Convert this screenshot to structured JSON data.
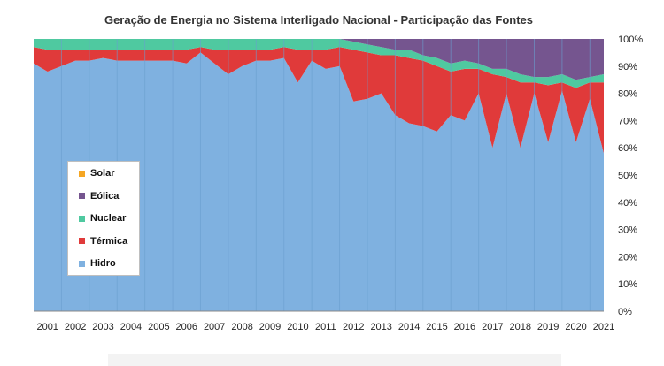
{
  "chart_data": {
    "type": "area",
    "stacked": true,
    "percent": true,
    "title": "Geração de Energia no Sistema Interligado Nacional - Participação das Fontes",
    "xlabel": "",
    "ylabel": "",
    "ylim": [
      0,
      100
    ],
    "y_ticks": [
      "0%",
      "10%",
      "20%",
      "30%",
      "40%",
      "50%",
      "60%",
      "70%",
      "80%",
      "90%",
      "100%"
    ],
    "y_axis_side": "right",
    "x_tick_labels": [
      "2001",
      "2002",
      "2003",
      "2004",
      "2005",
      "2006",
      "2007",
      "2008",
      "2009",
      "2010",
      "2011",
      "2012",
      "2013",
      "2014",
      "2015",
      "2016",
      "2017",
      "2018",
      "2019",
      "2020",
      "2021"
    ],
    "x": [
      2001.0,
      2001.5,
      2002.0,
      2002.5,
      2003.0,
      2003.5,
      2004.0,
      2004.5,
      2005.0,
      2005.5,
      2006.0,
      2006.5,
      2007.0,
      2007.5,
      2008.0,
      2008.5,
      2009.0,
      2009.5,
      2010.0,
      2010.5,
      2011.0,
      2011.5,
      2012.0,
      2012.5,
      2013.0,
      2013.5,
      2014.0,
      2014.5,
      2015.0,
      2015.5,
      2016.0,
      2016.5,
      2017.0,
      2017.5,
      2018.0,
      2018.5,
      2019.0,
      2019.5,
      2020.0,
      2020.5,
      2021.0,
      2021.5
    ],
    "grid": false,
    "legend_position": "left-middle",
    "series": [
      {
        "name": "Hidro",
        "color": "#7fb1e0",
        "values": [
          91,
          88,
          90,
          92,
          92,
          93,
          92,
          92,
          92,
          92,
          92,
          91,
          95,
          91,
          87,
          90,
          92,
          92,
          93,
          84,
          92,
          89,
          90,
          77,
          78,
          80,
          72,
          69,
          68,
          66,
          72,
          70,
          80,
          60,
          80,
          60,
          80,
          62,
          81,
          62,
          78,
          58
        ]
      },
      {
        "name": "Térmica",
        "color": "#e03a3a",
        "values": [
          6,
          8,
          6,
          4,
          4,
          3,
          4,
          4,
          4,
          4,
          4,
          5,
          2,
          5,
          9,
          6,
          4,
          4,
          4,
          12,
          4,
          7,
          7,
          19,
          17,
          14,
          22,
          24,
          24,
          24,
          16,
          19,
          9,
          27,
          6,
          24,
          4,
          21,
          3,
          20,
          6,
          26
        ]
      },
      {
        "name": "Nuclear",
        "color": "#4fc9a0",
        "values": [
          3,
          4,
          4,
          4,
          4,
          4,
          4,
          4,
          4,
          4,
          4,
          4,
          3,
          4,
          4,
          4,
          4,
          4,
          3,
          4,
          4,
          4,
          3,
          3,
          3,
          3,
          2,
          3,
          2,
          3,
          3,
          3,
          2,
          2,
          3,
          3,
          2,
          3,
          3,
          3,
          2,
          3
        ]
      },
      {
        "name": "Eólica",
        "color": "#75558f",
        "values": [
          0,
          0,
          0,
          0,
          0,
          0,
          0,
          0,
          0,
          0,
          0,
          0,
          0,
          0,
          0,
          0,
          0,
          0,
          0,
          0,
          0,
          0,
          0,
          1,
          2,
          3,
          4,
          4,
          6,
          7,
          9,
          8,
          9,
          11,
          11,
          13,
          14,
          14,
          13,
          15,
          14,
          13
        ]
      },
      {
        "name": "Solar",
        "color": "#f5a623",
        "values": [
          0,
          0,
          0,
          0,
          0,
          0,
          0,
          0,
          0,
          0,
          0,
          0,
          0,
          0,
          0,
          0,
          0,
          0,
          0,
          0,
          0,
          0,
          0,
          0,
          0,
          0,
          0,
          0,
          0,
          0,
          0,
          0,
          0,
          0,
          0,
          0,
          0,
          0,
          0,
          0,
          0,
          0
        ]
      }
    ],
    "legend_labels": [
      "Solar",
      "Eólica",
      "Nuclear",
      "Térmica",
      "Hidro"
    ]
  }
}
